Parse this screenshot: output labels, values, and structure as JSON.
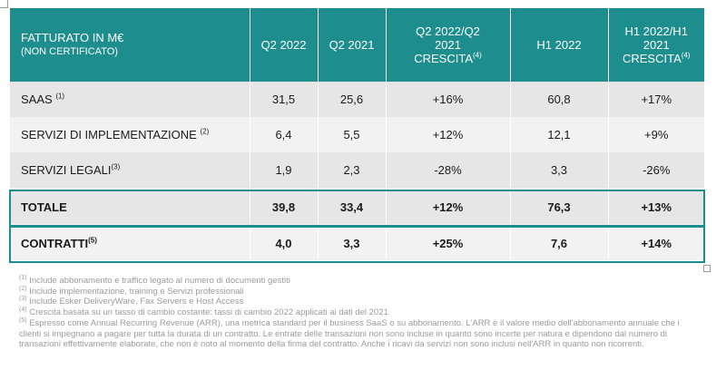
{
  "header": {
    "col0_title": "FATTURATO IN M€",
    "col0_subtitle": "(NON CERTIFICATO)",
    "col1": "Q2 2022",
    "col2": "Q2 2021",
    "col3_line1": "Q2 2022/Q2",
    "col3_line2": "2021",
    "col3_line3": "CRESCITA",
    "col3_note": "(4)",
    "col4": "H1 2022",
    "col5_line1": "H1 2022/H1",
    "col5_line2": "2021",
    "col5_line3": "CRESCITA",
    "col5_note": "(4)"
  },
  "rows": [
    {
      "label": "SAAS",
      "note": "(1)",
      "q2_2022": "31,5",
      "q2_2021": "25,6",
      "q2_growth": "+16%",
      "h1_2022": "60,8",
      "h1_growth": "+17%"
    },
    {
      "label": "SERVIZI DI IMPLEMENTAZIONE",
      "note": "(2)",
      "q2_2022": "6,4",
      "q2_2021": "5,5",
      "q2_growth": "+12%",
      "h1_2022": "12,1",
      "h1_growth": "+9%"
    },
    {
      "label": "SERVIZI LEGALI",
      "note": "(3)",
      "q2_2022": "1,9",
      "q2_2021": "2,3",
      "q2_growth": "-28%",
      "h1_2022": "3,3",
      "h1_growth": "-26%"
    },
    {
      "label": "TOTALE",
      "note": "",
      "q2_2022": "39,8",
      "q2_2021": "33,4",
      "q2_growth": "+12%",
      "h1_2022": "76,3",
      "h1_growth": "+13%"
    },
    {
      "label": "CONTRATTI",
      "note": "(5)",
      "q2_2022": "4,0",
      "q2_2021": "3,3",
      "q2_growth": "+25%",
      "h1_2022": "7,6",
      "h1_growth": "+14%"
    }
  ],
  "footnotes": [
    {
      "mark": "(1)",
      "text": " Include abbonamento e traffico legato al numero di documenti gestiti"
    },
    {
      "mark": "(2)",
      "text": " Include implementazione, training e Servizi professionali"
    },
    {
      "mark": "(3)",
      "text": " Include Esker DeliveryWare, Fax Servers e Host Access"
    },
    {
      "mark": "(4)",
      "text": " Crescita basata su un tasso di cambio costante: tassi di cambio 2022 applicati ai dati del 2021"
    },
    {
      "mark": "(5)",
      "text": " Espresso come Annual Recurring Revenue (ARR), una metrica standard per il business SaaS o su abbonamento. L'ARR è il valore medio dell'abbonamento annuale che i clienti si impegnano a pagare per tutta la durata di un contratto. Le entrate delle transazioni non sono incluse in quanto sono incerte per natura e dipendono dal numero di transazioni effettivamente elaborate, che non è noto al momento della firma del contratto. Anche i ricavi da servizi non sono inclusi nell'ARR in quanto non ricorrenti."
    }
  ]
}
